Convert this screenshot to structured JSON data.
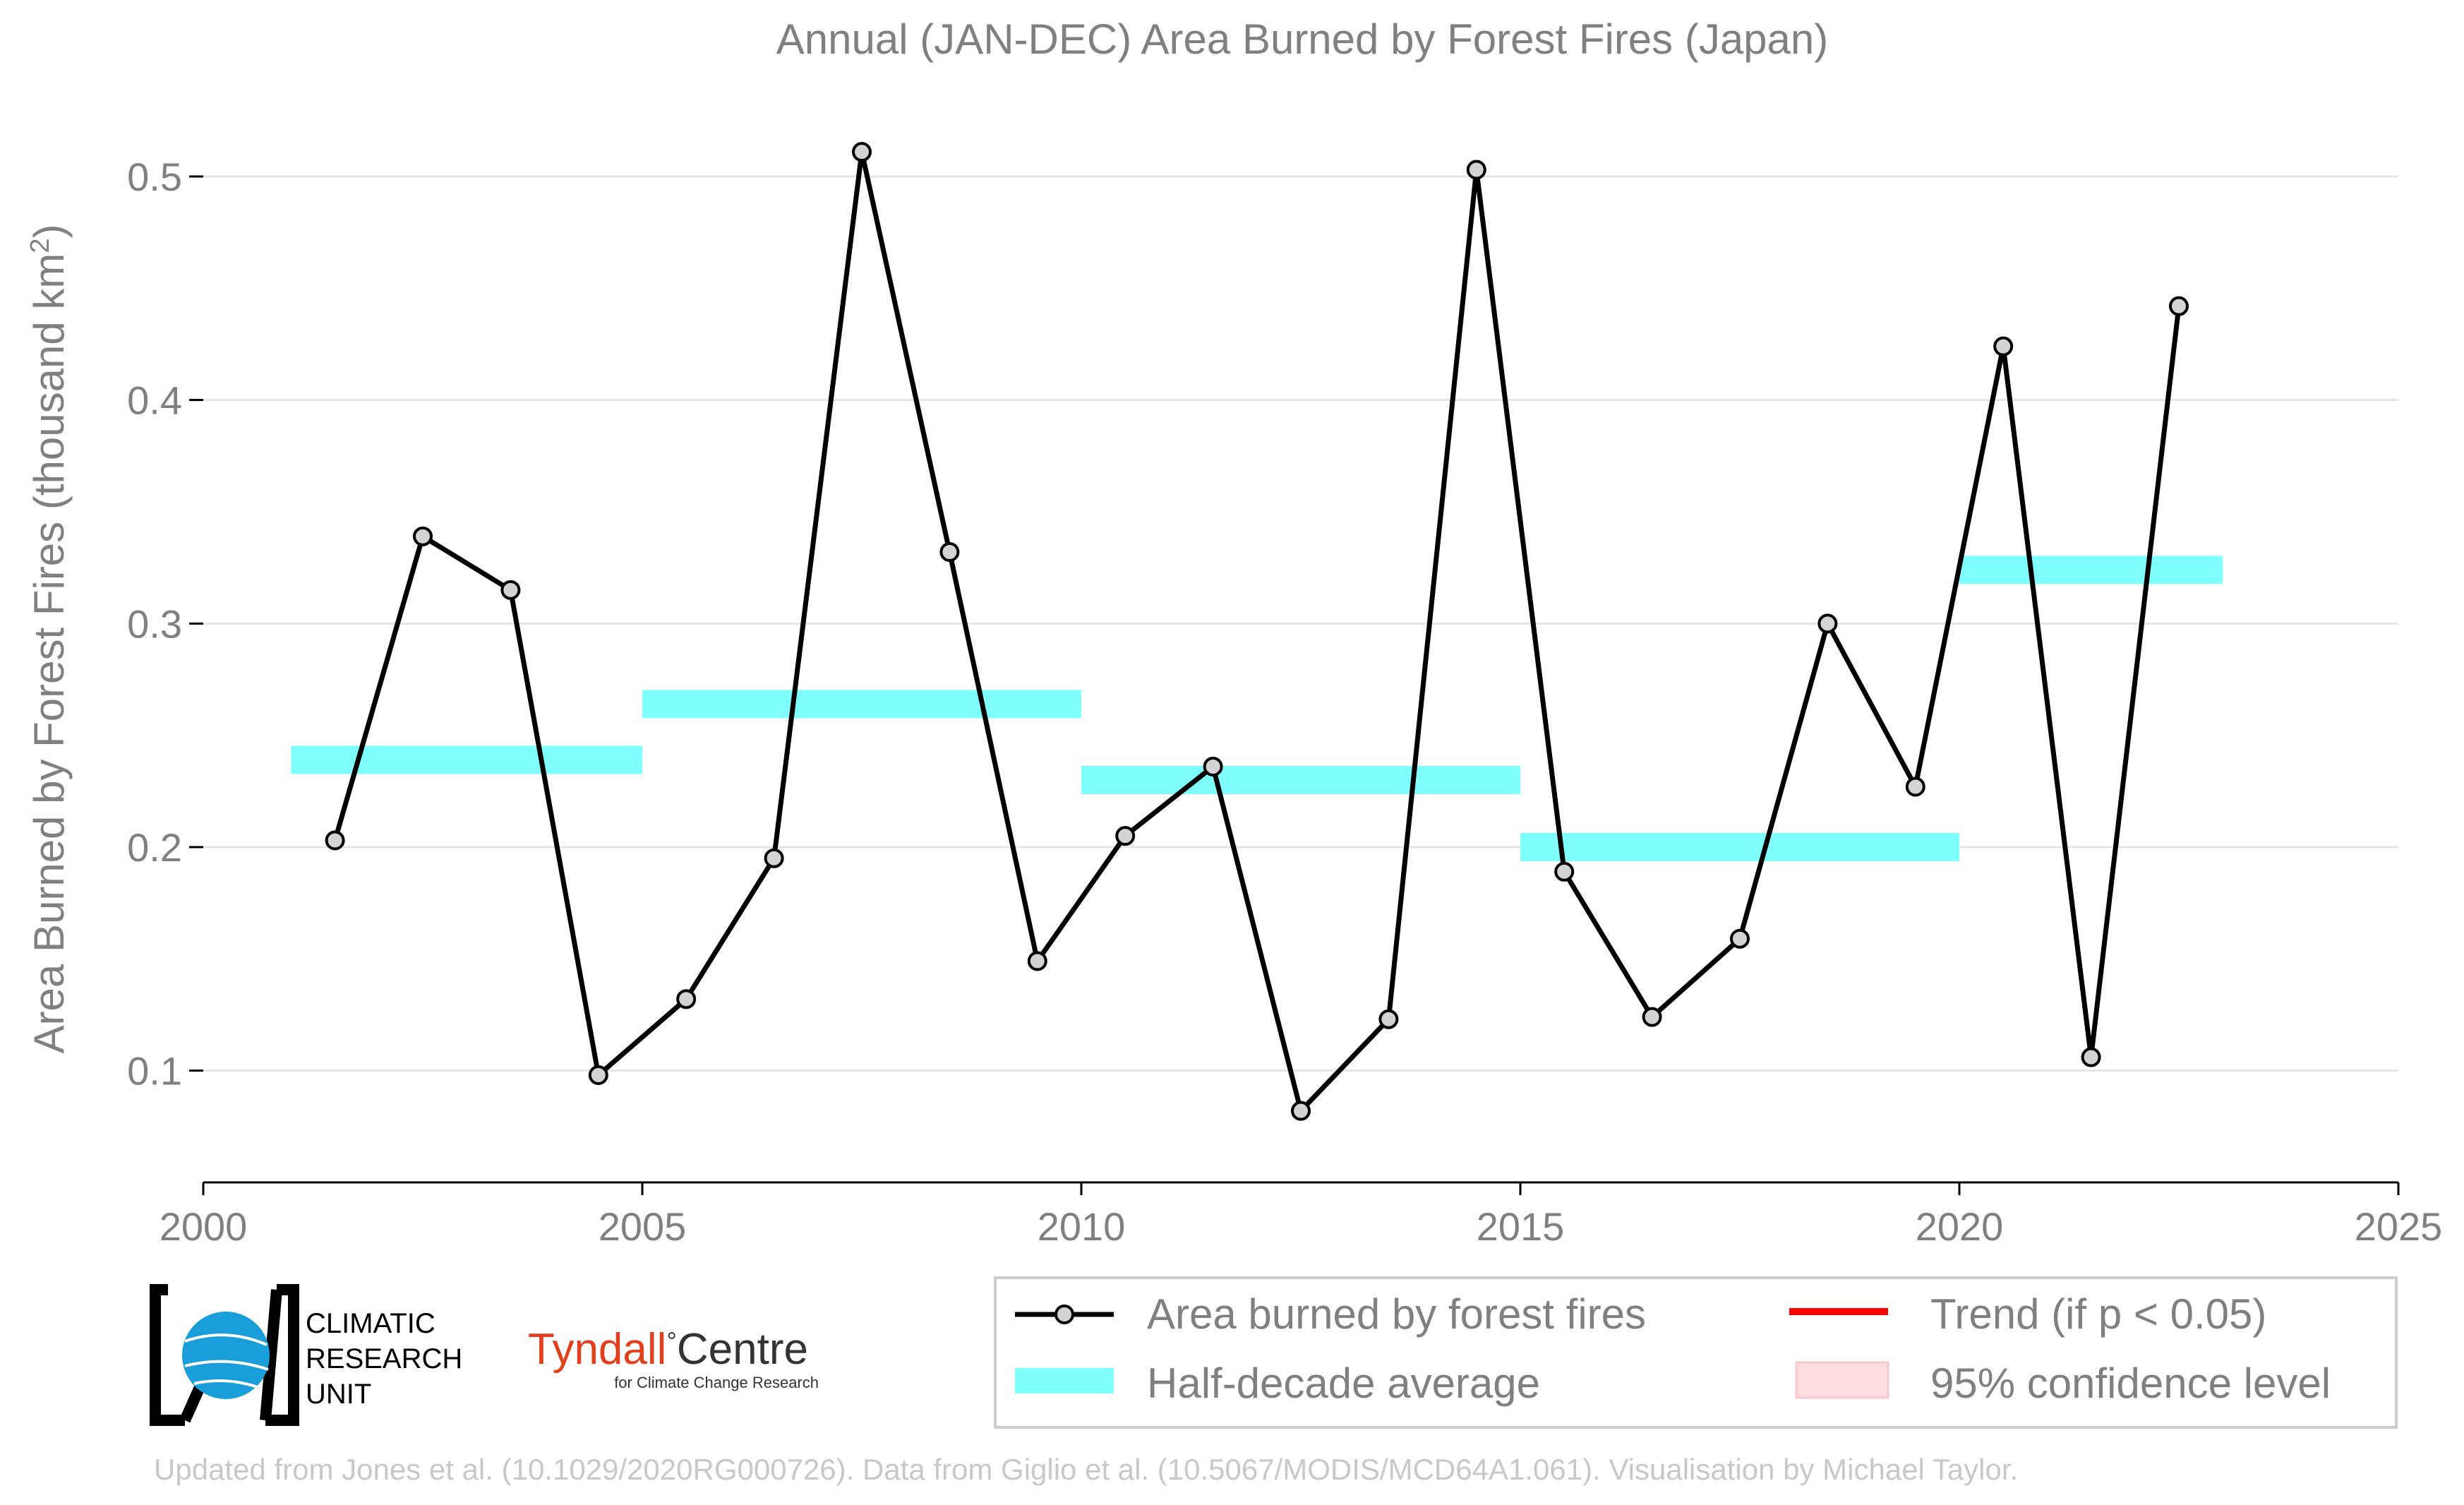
{
  "colors": {
    "series": "#000000",
    "marker_fill": "#d3d3d3",
    "half_decade": "#80ffff",
    "trend": "#ff0000",
    "confidence": "#ffdde1",
    "text": "#808080",
    "grid": "#e6e6e6"
  },
  "chart_data": {
    "type": "line",
    "title": "Annual (JAN-DEC) Area Burned by Forest Fires (Japan)",
    "ylabel": "Area Burned by Forest Fires (thousand km",
    "ylabel_sup": "2",
    "ylabel_close": ")",
    "xlim": [
      2000,
      2025
    ],
    "ylim": [
      0.05,
      0.53
    ],
    "xticks": [
      "2000",
      "2005",
      "2010",
      "2015",
      "2020",
      "2025"
    ],
    "xtick_values": [
      2000,
      2005,
      2010,
      2015,
      2020,
      2025
    ],
    "yticks": [
      "0.1",
      "0.2",
      "0.3",
      "0.4",
      "0.5"
    ],
    "ytick_values": [
      0.1,
      0.2,
      0.3,
      0.4,
      0.5
    ],
    "grid": true,
    "series": [
      {
        "name": "Area burned by forest fires",
        "x": [
          2001.5,
          2002.5,
          2003.5,
          2004.5,
          2005.5,
          2006.5,
          2007.5,
          2008.5,
          2009.5,
          2010.5,
          2011.5,
          2012.5,
          2013.5,
          2014.5,
          2015.5,
          2016.5,
          2017.5,
          2018.5,
          2019.5,
          2020.5,
          2021.5,
          2022.5
        ],
        "y": [
          0.203,
          0.339,
          0.315,
          0.098,
          0.132,
          0.195,
          0.511,
          0.332,
          0.149,
          0.205,
          0.236,
          0.082,
          0.123,
          0.503,
          0.189,
          0.124,
          0.159,
          0.3,
          0.227,
          0.424,
          0.106,
          0.442
        ]
      }
    ],
    "half_decade_average": [
      {
        "x0": 2001,
        "x1": 2005,
        "y": 0.239
      },
      {
        "x0": 2005,
        "x1": 2010,
        "y": 0.264
      },
      {
        "x0": 2010,
        "x1": 2015,
        "y": 0.23
      },
      {
        "x0": 2015,
        "x1": 2020,
        "y": 0.2
      },
      {
        "x0": 2020,
        "x1": 2023,
        "y": 0.324
      }
    ],
    "legend": {
      "placement": "bottom-right",
      "items": [
        {
          "label": "Area burned by forest fires",
          "kind": "line-marker"
        },
        {
          "label": "Trend (if p < 0.05)",
          "kind": "line"
        },
        {
          "label": "Half-decade average",
          "kind": "band"
        },
        {
          "label": "95% confidence level",
          "kind": "patch"
        }
      ]
    }
  },
  "logos": {
    "cru_lines": [
      "CLIMATIC",
      "RESEARCH",
      "UNIT"
    ],
    "tyndall_main": "Tyndall",
    "tyndall_degree": "°",
    "tyndall_centre": "Centre",
    "tyndall_sub": "for Climate Change Research"
  },
  "footer": "Updated from Jones et al. (10.1029/2020RG000726). Data from Giglio et al. (10.5067/MODIS/MCD64A1.061). Visualisation by Michael Taylor."
}
